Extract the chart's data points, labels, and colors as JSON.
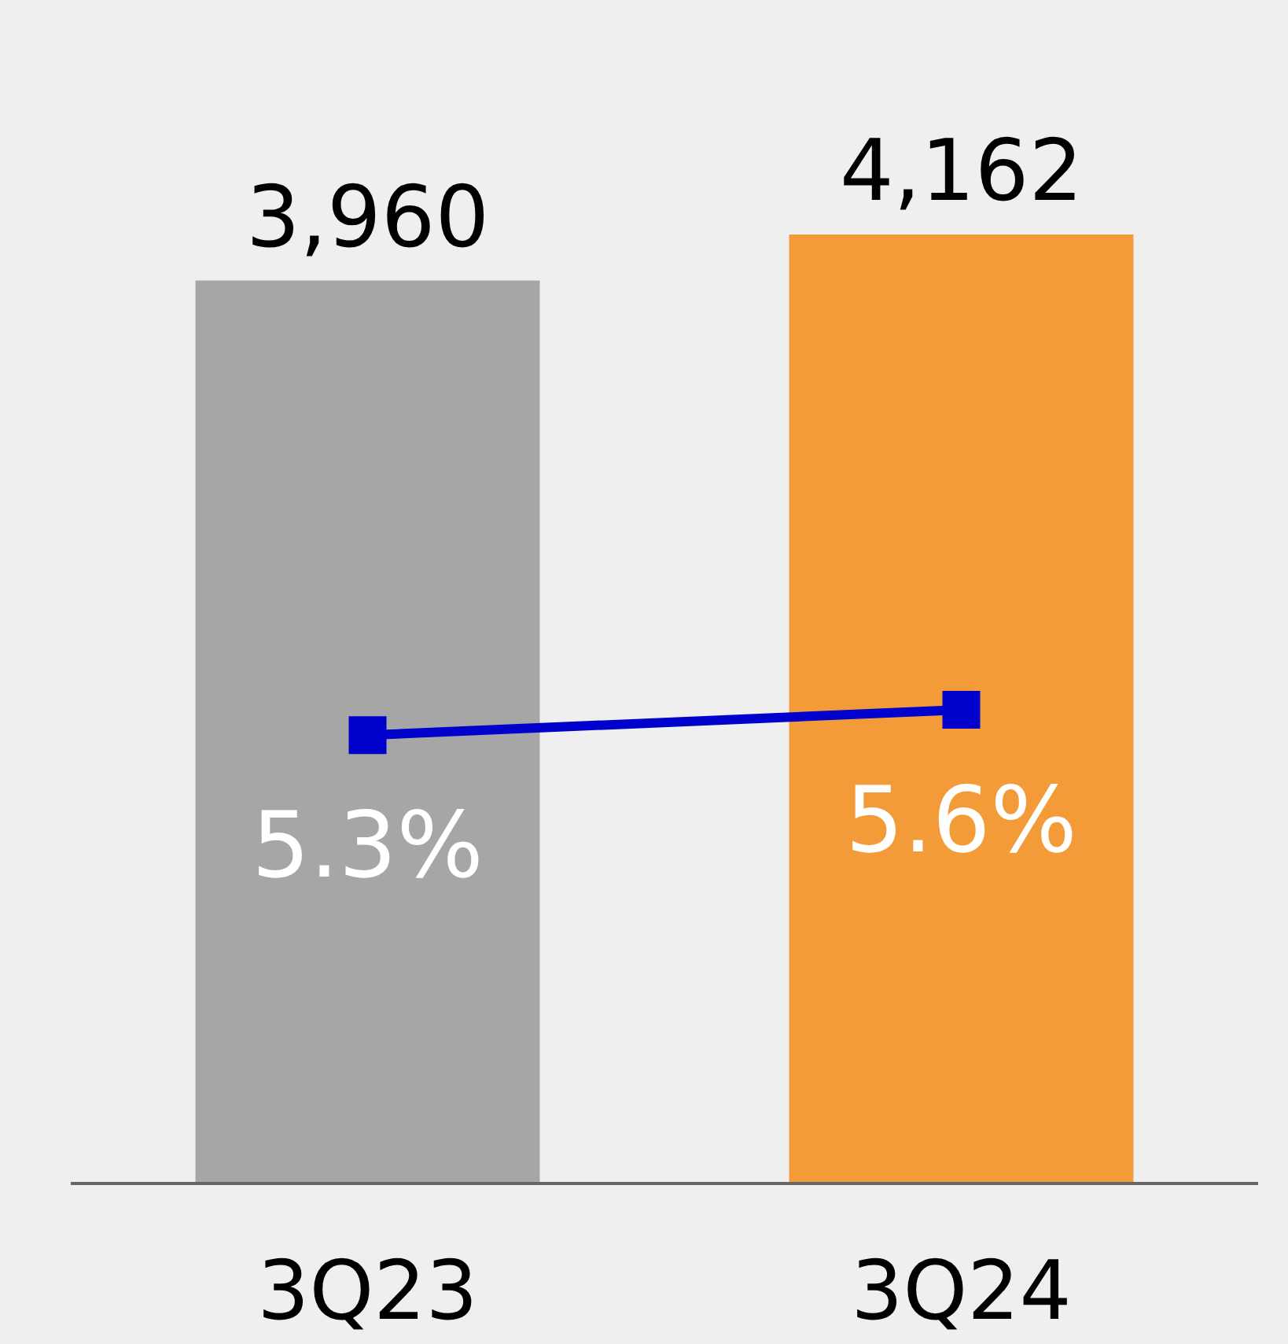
{
  "chart_data": {
    "type": "bar",
    "categories": [
      "3Q23",
      "3Q24"
    ],
    "series": [
      {
        "colors": [
          "#a6a6a6",
          "#f29b38"
        ],
        "values": [
          3960,
          4162
        ],
        "value_labels": [
          "3,960",
          "4,162"
        ]
      },
      {
        "type": "line",
        "axis": "y2",
        "color": "#0000cc",
        "values": [
          5.3,
          5.6
        ],
        "value_labels": [
          "5.3%",
          "5.6%"
        ],
        "marker": "square"
      }
    ],
    "tick_labels": "x"
  }
}
